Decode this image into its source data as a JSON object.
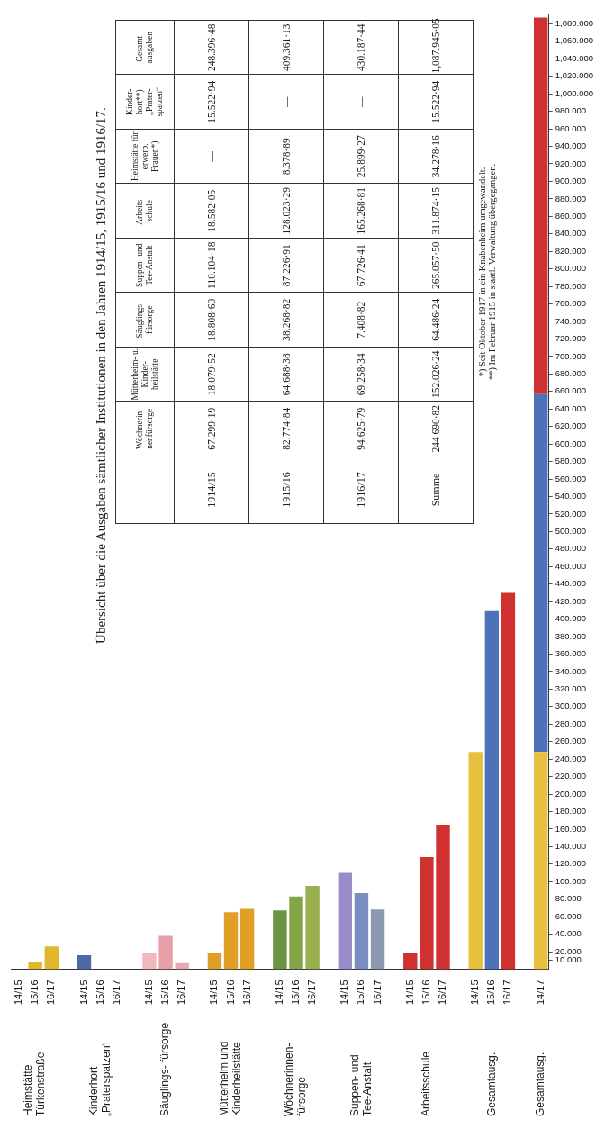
{
  "chart_data": [
    {
      "type": "bar",
      "stacked": true,
      "categories": [
        "14/15",
        "15/16",
        "16/17",
        null,
        "14/15",
        "15/16",
        "16/17",
        null,
        "14/15",
        "15/16",
        "16/17",
        null,
        "14/15",
        "15/16",
        "16/17",
        null,
        "14/15",
        "15/16",
        "16/17",
        null,
        "14/15",
        "15/16",
        "16/17",
        null,
        "14/15",
        "15/16",
        "16/17",
        null,
        "14/15",
        "15/16",
        "16/17",
        null,
        "14/17"
      ],
      "series": [
        {
          "values": [
            null,
            8,
            26,
            null,
            16,
            null,
            null,
            null,
            19,
            38,
            7,
            null,
            18,
            65,
            69,
            null,
            67,
            83,
            95,
            null,
            110,
            87,
            68,
            null,
            19,
            128,
            165,
            null,
            248,
            409,
            430,
            null,
            248
          ],
          "colors": [
            "#e0b830",
            "#e0b830",
            "#e0b830",
            null,
            "#4d6aa8",
            "#4d6aa8",
            "#4d6aa8",
            null,
            "#f0b8bc",
            "#e8a0a8",
            "#e8a8b0",
            null,
            "#e0a028",
            "#e0a028",
            "#e0a028",
            null,
            "#6a9440",
            "#84a448",
            "#98b050",
            null,
            "#9a8cc8",
            "#7a8cc0",
            "#8c98b0",
            null,
            "#d03030",
            "#d03030",
            "#d03030",
            null,
            "#e8c040",
            "#4d72b8",
            "#d03030",
            null,
            "#e8c040"
          ]
        },
        {
          "values": [
            null,
            null,
            null,
            null,
            null,
            null,
            null,
            null,
            null,
            null,
            null,
            null,
            null,
            null,
            null,
            null,
            null,
            null,
            null,
            null,
            null,
            null,
            null,
            null,
            null,
            null,
            null,
            null,
            null,
            null,
            null,
            null,
            409
          ],
          "color": "#4d72b8"
        },
        {
          "values": [
            null,
            null,
            null,
            null,
            null,
            null,
            null,
            null,
            null,
            null,
            null,
            null,
            null,
            null,
            null,
            null,
            null,
            null,
            null,
            null,
            null,
            null,
            null,
            null,
            null,
            null,
            null,
            null,
            null,
            null,
            null,
            null,
            430
          ],
          "color": "#d03030"
        }
      ],
      "ylim": [
        0,
        1090
      ],
      "yticks": [
        {
          "value": 10,
          "label": "10.000"
        },
        {
          "value": 20,
          "label": "20.000"
        },
        {
          "value": 40,
          "label": "40.000"
        },
        {
          "value": 60,
          "label": "60.000"
        },
        {
          "value": 80,
          "label": "80.000"
        },
        {
          "value": 100,
          "label": "100.000"
        },
        {
          "value": 120,
          "label": "120.000"
        },
        {
          "value": 140,
          "label": "140.000"
        },
        {
          "value": 160,
          "label": "160.000"
        },
        {
          "value": 180,
          "label": "180.000"
        },
        {
          "value": 200,
          "label": "200.000"
        },
        {
          "value": 220,
          "label": "220.000"
        },
        {
          "value": 240,
          "label": "240.000"
        },
        {
          "value": 260,
          "label": "260.000"
        },
        {
          "value": 280,
          "label": "280.000"
        },
        {
          "value": 300,
          "label": "300.000"
        },
        {
          "value": 320,
          "label": "320.000"
        },
        {
          "value": 340,
          "label": "340.000"
        },
        {
          "value": 360,
          "label": "360.000"
        },
        {
          "value": 380,
          "label": "380.000"
        },
        {
          "value": 400,
          "label": "400.000"
        },
        {
          "value": 420,
          "label": "420.000"
        },
        {
          "value": 440,
          "label": "440.000"
        },
        {
          "value": 460,
          "label": "460.000"
        },
        {
          "value": 480,
          "label": "480.000"
        },
        {
          "value": 500,
          "label": "500.000"
        },
        {
          "value": 520,
          "label": "520.000"
        },
        {
          "value": 540,
          "label": "540.000"
        },
        {
          "value": 560,
          "label": "560.000"
        },
        {
          "value": 580,
          "label": "580.000"
        },
        {
          "value": 600,
          "label": "600.000"
        },
        {
          "value": 620,
          "label": "620.000"
        },
        {
          "value": 640,
          "label": "640.000"
        },
        {
          "value": 660,
          "label": "660.000"
        },
        {
          "value": 680,
          "label": "680.000"
        },
        {
          "value": 700,
          "label": "700.000"
        },
        {
          "value": 720,
          "label": "720.000"
        },
        {
          "value": 740,
          "label": "740.000"
        },
        {
          "value": 760,
          "label": "760.000"
        },
        {
          "value": 780,
          "label": "780.000"
        },
        {
          "value": 800,
          "label": "800.000"
        },
        {
          "value": 820,
          "label": "820.000"
        },
        {
          "value": 840,
          "label": "840.000"
        },
        {
          "value": 860,
          "label": "860.000"
        },
        {
          "value": 880,
          "label": "880.000"
        },
        {
          "value": 900,
          "label": "900.000"
        },
        {
          "value": 920,
          "label": "920.000"
        },
        {
          "value": 940,
          "label": "940.000"
        },
        {
          "value": 960,
          "label": "960.000"
        },
        {
          "value": 980,
          "label": "980.000"
        },
        {
          "value": 1000,
          "label": "1,000.000"
        },
        {
          "value": 1020,
          "label": "1,020.000"
        },
        {
          "value": 1040,
          "label": "1,040.000"
        },
        {
          "value": 1060,
          "label": "1,060.000"
        },
        {
          "value": 1080,
          "label": "1,080.000"
        }
      ],
      "annotations": [
        "Heimstätte Türkenstraße",
        "Kinderhort „Praterspatzen“",
        "Säuglings- fürsorge",
        "Mütterheim und Kinderheilstätte",
        "Wöchnerinnen- fürsorge",
        "Suppen- und Tee-Anstalt",
        "Arbeitsschule",
        "Gesamtausg.",
        "Gesamtausg."
      ]
    },
    {
      "type": "other",
      "title": "Übersicht über die Ausgaben sämtlicher Institutionen in den Jahren 1914/15, 1915/16 und 1916/17.",
      "categories": [
        "Wöchnerin- nenfürsorge",
        "Mütterheim- u. Kinder- heilstätte",
        "Säuglings- fürsorge",
        "Suppen- und Tee-Anstalt",
        "Arbeits- schule",
        "Heimstätte für erwerb. Frauen*)",
        "Kinder- hort**) „Prater- spatzen“",
        "Gesamt- ausgaben"
      ],
      "y_categories": [
        "1914/15",
        "1915/16",
        "1916/17",
        "Summe"
      ],
      "cell_labels": [
        [
          "67.299·19",
          "18.079·52",
          "18.808·60",
          "110.104·18",
          "18.582·05",
          "—",
          "15.522·94",
          "248.396·48"
        ],
        [
          "82.774·84",
          "64.688·38",
          "38.268·82",
          "87.226·91",
          "128.023·29",
          "8.378·89",
          "—",
          "409.361·13"
        ],
        [
          "94.625·79",
          "69.258·34",
          "7.408·82",
          "67.726·41",
          "165.268·81",
          "25.899·27",
          "—",
          "430.187·44"
        ],
        [
          "244 690·82",
          "152.026·24",
          "64.486·24",
          "265.057·50",
          "311.874·15",
          "34.278·16",
          "15.522·94",
          "1,087.945·05"
        ]
      ],
      "annotations": [
        "*) Seit Oktober 1917 in ein Knabenheim umgewandelt.",
        "**) Im Februar 1915 in staatl. Verwaltung übergegangen."
      ]
    }
  ]
}
